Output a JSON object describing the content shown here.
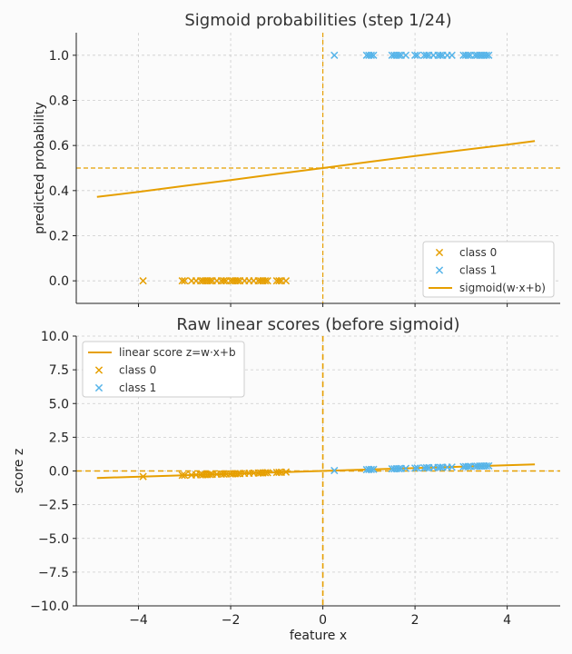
{
  "colors": {
    "class0": "#E69F00",
    "class1": "#56B4E9",
    "curve": "#E69F00",
    "grid": "#cccccc",
    "axis": "#222222",
    "background": "#fbfbfb"
  },
  "chart_data": [
    {
      "type": "scatter",
      "title": "Sigmoid probabilities (step 1/24)",
      "xlabel": "",
      "ylabel": "predicted probability",
      "xlim": [
        -5.35,
        5.15
      ],
      "ylim": [
        -0.1,
        1.1
      ],
      "xticks": [
        -4,
        -2,
        0,
        2,
        4
      ],
      "yticks": [
        0.0,
        0.2,
        0.4,
        0.6,
        0.8,
        1.0
      ],
      "ytick_labels": [
        "0.0",
        "0.2",
        "0.4",
        "0.6",
        "0.8",
        "1.0"
      ],
      "grid": true,
      "legend_position": "lower right",
      "reference_lines": {
        "hline": 0.5,
        "vline": 0.0
      },
      "series": [
        {
          "name": "class 0",
          "marker": "x",
          "x": [
            -3.9,
            -3.05,
            -3.0,
            -2.85,
            -2.75,
            -2.65,
            -2.6,
            -2.55,
            -2.5,
            -2.45,
            -2.4,
            -2.3,
            -2.2,
            -2.15,
            -2.1,
            -2.0,
            -1.95,
            -1.9,
            -1.85,
            -1.8,
            -1.7,
            -1.6,
            -1.5,
            -1.4,
            -1.35,
            -1.3,
            -1.25,
            -1.2,
            -1.0,
            -0.95,
            -0.9,
            -0.8
          ],
          "y": [
            0,
            0,
            0,
            0,
            0,
            0,
            0,
            0,
            0,
            0,
            0,
            0,
            0,
            0,
            0,
            0,
            0,
            0,
            0,
            0,
            0,
            0,
            0,
            0,
            0,
            0,
            0,
            0,
            0,
            0,
            0,
            0
          ]
        },
        {
          "name": "class 1",
          "marker": "x",
          "x": [
            0.25,
            0.95,
            1.0,
            1.05,
            1.1,
            1.5,
            1.55,
            1.6,
            1.65,
            1.7,
            1.8,
            2.0,
            2.05,
            2.2,
            2.25,
            2.3,
            2.4,
            2.5,
            2.55,
            2.6,
            2.7,
            2.8,
            3.05,
            3.1,
            3.15,
            3.2,
            3.3,
            3.35,
            3.4,
            3.45,
            3.5,
            3.55,
            3.6
          ],
          "y": [
            1,
            1,
            1,
            1,
            1,
            1,
            1,
            1,
            1,
            1,
            1,
            1,
            1,
            1,
            1,
            1,
            1,
            1,
            1,
            1,
            1,
            1,
            1,
            1,
            1,
            1,
            1,
            1,
            1,
            1,
            1,
            1,
            1
          ]
        },
        {
          "name": "sigmoid(w·x+b)",
          "kind": "line",
          "x": [
            -4.9,
            -4.0,
            -3.0,
            -2.0,
            -1.0,
            0.0,
            1.0,
            2.0,
            3.0,
            4.0,
            4.6
          ],
          "y": [
            0.372,
            0.394,
            0.421,
            0.447,
            0.474,
            0.5,
            0.527,
            0.553,
            0.579,
            0.604,
            0.62
          ]
        }
      ]
    },
    {
      "type": "scatter",
      "title": "Raw linear scores (before sigmoid)",
      "xlabel": "feature x",
      "ylabel": "score z",
      "xlim": [
        -5.35,
        5.15
      ],
      "ylim": [
        -10.0,
        10.0
      ],
      "xticks": [
        -4,
        -2,
        0,
        2,
        4
      ],
      "xtick_labels": [
        "−4",
        "−2",
        "0",
        "2",
        "4"
      ],
      "yticks": [
        -10.0,
        -7.5,
        -5.0,
        -2.5,
        0.0,
        2.5,
        5.0,
        7.5,
        10.0
      ],
      "ytick_labels": [
        "−10.0",
        "−7.5",
        "−5.0",
        "−2.5",
        "0.0",
        "2.5",
        "5.0",
        "7.5",
        "10.0"
      ],
      "grid": true,
      "legend_position": "upper left",
      "reference_lines": {
        "hline": 0.0,
        "vline": 0.0
      },
      "series": [
        {
          "name": "linear score z=w·x+b",
          "kind": "line",
          "x": [
            -4.9,
            4.6
          ],
          "y": [
            -0.52,
            0.49
          ]
        },
        {
          "name": "class 0",
          "marker": "x",
          "x": [
            -3.9,
            -3.05,
            -3.0,
            -2.85,
            -2.75,
            -2.65,
            -2.6,
            -2.55,
            -2.5,
            -2.45,
            -2.4,
            -2.3,
            -2.2,
            -2.15,
            -2.1,
            -2.0,
            -1.95,
            -1.9,
            -1.85,
            -1.8,
            -1.7,
            -1.6,
            -1.5,
            -1.4,
            -1.35,
            -1.3,
            -1.25,
            -1.2,
            -1.0,
            -0.95,
            -0.9,
            -0.8
          ],
          "y": [
            -0.41,
            -0.32,
            -0.32,
            -0.3,
            -0.29,
            -0.28,
            -0.28,
            -0.27,
            -0.27,
            -0.26,
            -0.25,
            -0.24,
            -0.23,
            -0.23,
            -0.22,
            -0.21,
            -0.21,
            -0.2,
            -0.2,
            -0.19,
            -0.18,
            -0.17,
            -0.16,
            -0.15,
            -0.14,
            -0.14,
            -0.13,
            -0.13,
            -0.11,
            -0.1,
            -0.1,
            -0.08
          ]
        },
        {
          "name": "class 1",
          "marker": "x",
          "x": [
            0.25,
            0.95,
            1.0,
            1.05,
            1.1,
            1.5,
            1.55,
            1.6,
            1.65,
            1.7,
            1.8,
            2.0,
            2.05,
            2.2,
            2.25,
            2.3,
            2.4,
            2.5,
            2.55,
            2.6,
            2.7,
            2.8,
            3.05,
            3.1,
            3.15,
            3.2,
            3.3,
            3.35,
            3.4,
            3.45,
            3.5,
            3.55,
            3.6
          ],
          "y": [
            0.03,
            0.1,
            0.11,
            0.11,
            0.12,
            0.16,
            0.16,
            0.17,
            0.17,
            0.18,
            0.19,
            0.21,
            0.22,
            0.23,
            0.24,
            0.24,
            0.25,
            0.26,
            0.27,
            0.27,
            0.28,
            0.29,
            0.32,
            0.33,
            0.33,
            0.34,
            0.35,
            0.35,
            0.36,
            0.36,
            0.37,
            0.37,
            0.38
          ]
        }
      ]
    }
  ]
}
